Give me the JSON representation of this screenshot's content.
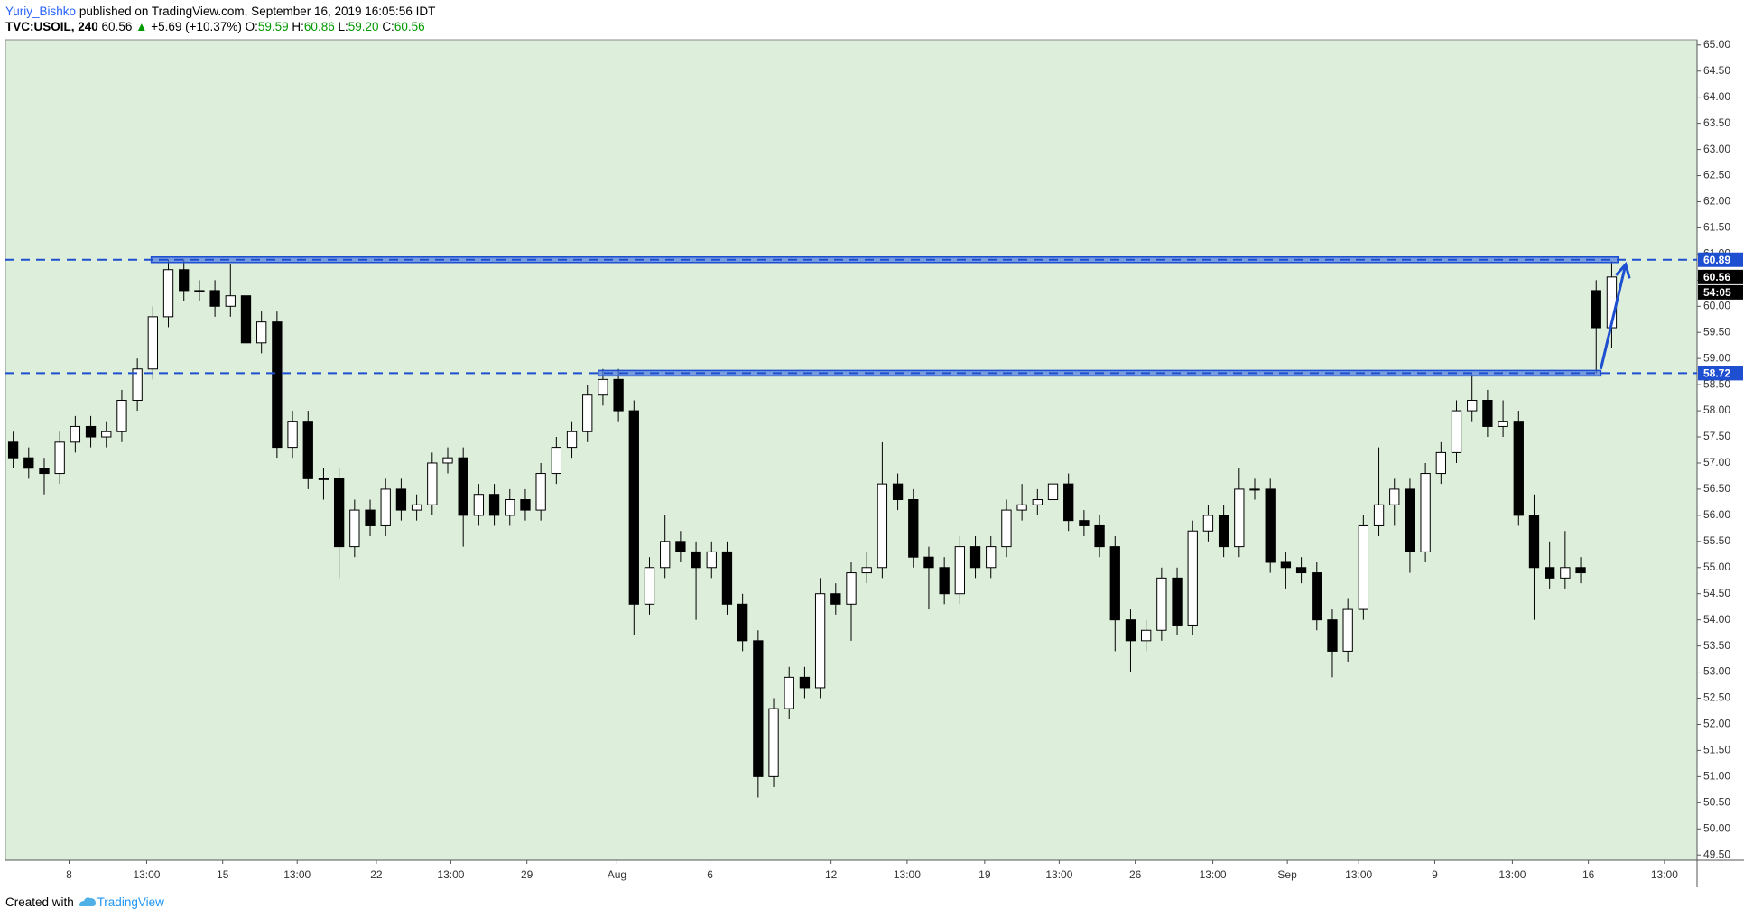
{
  "header": {
    "author": "Yuriy_Bishko",
    "published": "published on TradingView.com, September 16, 2019 16:05:56 IDT",
    "symbol": "TVC:USOIL, 240",
    "price": "60.56",
    "arrow": "▲",
    "change": "+5.69 (+10.37%)",
    "o_label": "O:",
    "o": "59.59",
    "h_label": "H:",
    "h": "60.86",
    "l_label": "L:",
    "l": "59.20",
    "c_label": "C:",
    "c": "60.56"
  },
  "footer": {
    "created": "Created with",
    "brand": "TradingView"
  },
  "chart_data": {
    "type": "candlestick",
    "up_color": "#ffffff",
    "down_color": "#000000",
    "background": "#ddefdb",
    "xlim": [
      -0.5,
      108.5
    ],
    "ylim": [
      49.4,
      65.1
    ],
    "xticks": [
      {
        "value": 3.6,
        "label": "8"
      },
      {
        "value": 8.6,
        "label": "13:00"
      },
      {
        "value": 13.5,
        "label": "15"
      },
      {
        "value": 18.3,
        "label": "13:00"
      },
      {
        "value": 23.4,
        "label": "22"
      },
      {
        "value": 28.2,
        "label": "13:00"
      },
      {
        "value": 33.1,
        "label": "29"
      },
      {
        "value": 38.9,
        "label": "Aug"
      },
      {
        "value": 44.9,
        "label": "6"
      },
      {
        "value": 52.7,
        "label": "12"
      },
      {
        "value": 57.6,
        "label": "13:00"
      },
      {
        "value": 62.6,
        "label": "19"
      },
      {
        "value": 67.4,
        "label": "13:00"
      },
      {
        "value": 72.3,
        "label": "26"
      },
      {
        "value": 77.3,
        "label": "13:00"
      },
      {
        "value": 82.1,
        "label": "Sep"
      },
      {
        "value": 86.7,
        "label": "13:00"
      },
      {
        "value": 91.6,
        "label": "9"
      },
      {
        "value": 96.6,
        "label": "13:00"
      },
      {
        "value": 101.5,
        "label": "16"
      },
      {
        "value": 106.4,
        "label": "13:00"
      }
    ],
    "yticks": [
      {
        "value": 49.5,
        "label": "49.50"
      },
      {
        "value": 50,
        "label": "50.00"
      },
      {
        "value": 50.5,
        "label": "50.50"
      },
      {
        "value": 51,
        "label": "51.00"
      },
      {
        "value": 51.5,
        "label": "51.50"
      },
      {
        "value": 52,
        "label": "52.00"
      },
      {
        "value": 52.5,
        "label": "52.50"
      },
      {
        "value": 53,
        "label": "53.00"
      },
      {
        "value": 53.5,
        "label": "53.50"
      },
      {
        "value": 54,
        "label": "54.00"
      },
      {
        "value": 54.5,
        "label": "54.50"
      },
      {
        "value": 55,
        "label": "55.00"
      },
      {
        "value": 55.5,
        "label": "55.50"
      },
      {
        "value": 56,
        "label": "56.00"
      },
      {
        "value": 56.5,
        "label": "56.50"
      },
      {
        "value": 57,
        "label": "57.00"
      },
      {
        "value": 57.5,
        "label": "57.50"
      },
      {
        "value": 58,
        "label": "58.00"
      },
      {
        "value": 58.5,
        "label": "58.50"
      },
      {
        "value": 59,
        "label": "59.00"
      },
      {
        "value": 59.5,
        "label": "59.50"
      },
      {
        "value": 60,
        "label": "60.00"
      },
      {
        "value": 60.5,
        "label": "60.50"
      },
      {
        "value": 61,
        "label": "61.00"
      },
      {
        "value": 61.5,
        "label": "61.50"
      },
      {
        "value": 62,
        "label": "62.00"
      },
      {
        "value": 62.5,
        "label": "62.50"
      },
      {
        "value": 63,
        "label": "63.00"
      },
      {
        "value": 63.5,
        "label": "63.50"
      },
      {
        "value": 64,
        "label": "64.00"
      },
      {
        "value": 64.5,
        "label": "64.50"
      },
      {
        "value": 65,
        "label": "65.00"
      }
    ],
    "ohlc": [
      [
        57.4,
        57.6,
        56.9,
        57.1
      ],
      [
        57.1,
        57.3,
        56.7,
        56.9
      ],
      [
        56.9,
        57.1,
        56.4,
        56.8
      ],
      [
        56.8,
        57.6,
        56.6,
        57.4
      ],
      [
        57.4,
        57.9,
        57.2,
        57.7
      ],
      [
        57.7,
        57.9,
        57.3,
        57.5
      ],
      [
        57.5,
        57.8,
        57.3,
        57.6
      ],
      [
        57.6,
        58.4,
        57.4,
        58.2
      ],
      [
        58.2,
        59.0,
        58.0,
        58.8
      ],
      [
        58.8,
        60.0,
        58.6,
        59.8
      ],
      [
        59.8,
        60.9,
        59.6,
        60.7
      ],
      [
        60.7,
        60.9,
        60.1,
        60.3
      ],
      [
        60.3,
        60.5,
        60.1,
        60.3
      ],
      [
        60.3,
        60.5,
        59.8,
        60.0
      ],
      [
        60.0,
        60.8,
        59.8,
        60.2
      ],
      [
        60.2,
        60.4,
        59.1,
        59.3
      ],
      [
        59.3,
        59.9,
        59.1,
        59.7
      ],
      [
        59.7,
        59.9,
        57.1,
        57.3
      ],
      [
        57.3,
        58.0,
        57.1,
        57.8
      ],
      [
        57.8,
        58.0,
        56.5,
        56.7
      ],
      [
        56.7,
        56.9,
        56.3,
        56.7
      ],
      [
        56.7,
        56.9,
        54.8,
        55.4
      ],
      [
        55.4,
        56.3,
        55.2,
        56.1
      ],
      [
        56.1,
        56.3,
        55.6,
        55.8
      ],
      [
        55.8,
        56.7,
        55.6,
        56.5
      ],
      [
        56.5,
        56.7,
        55.9,
        56.1
      ],
      [
        56.1,
        56.4,
        55.9,
        56.2
      ],
      [
        56.2,
        57.2,
        56.0,
        57.0
      ],
      [
        57.0,
        57.3,
        56.8,
        57.1
      ],
      [
        57.1,
        57.3,
        55.4,
        56.0
      ],
      [
        56.0,
        56.6,
        55.8,
        56.4
      ],
      [
        56.4,
        56.6,
        55.8,
        56.0
      ],
      [
        56.0,
        56.5,
        55.8,
        56.3
      ],
      [
        56.3,
        56.5,
        55.9,
        56.1
      ],
      [
        56.1,
        57.0,
        55.9,
        56.8
      ],
      [
        56.8,
        57.5,
        56.6,
        57.3
      ],
      [
        57.3,
        57.8,
        57.1,
        57.6
      ],
      [
        57.6,
        58.5,
        57.4,
        58.3
      ],
      [
        58.3,
        58.8,
        58.1,
        58.6
      ],
      [
        58.6,
        58.8,
        57.8,
        58.0
      ],
      [
        58.0,
        58.2,
        53.7,
        54.3
      ],
      [
        54.3,
        55.2,
        54.1,
        55.0
      ],
      [
        55.0,
        56.0,
        54.8,
        55.5
      ],
      [
        55.5,
        55.7,
        55.1,
        55.3
      ],
      [
        55.3,
        55.5,
        54.0,
        55.0
      ],
      [
        55.0,
        55.5,
        54.8,
        55.3
      ],
      [
        55.3,
        55.5,
        54.1,
        54.3
      ],
      [
        54.3,
        54.5,
        53.4,
        53.6
      ],
      [
        53.6,
        53.8,
        50.6,
        51.0
      ],
      [
        51.0,
        52.5,
        50.8,
        52.3
      ],
      [
        52.3,
        53.1,
        52.1,
        52.9
      ],
      [
        52.9,
        53.1,
        52.5,
        52.7
      ],
      [
        52.7,
        54.8,
        52.5,
        54.5
      ],
      [
        54.5,
        54.7,
        54.1,
        54.3
      ],
      [
        54.3,
        55.1,
        53.6,
        54.9
      ],
      [
        54.9,
        55.3,
        54.7,
        55.0
      ],
      [
        55.0,
        57.4,
        54.8,
        56.6
      ],
      [
        56.6,
        56.8,
        56.1,
        56.3
      ],
      [
        56.3,
        56.5,
        55.0,
        55.2
      ],
      [
        55.2,
        55.4,
        54.2,
        55.0
      ],
      [
        55.0,
        55.2,
        54.3,
        54.5
      ],
      [
        54.5,
        55.6,
        54.3,
        55.4
      ],
      [
        55.4,
        55.6,
        54.8,
        55.0
      ],
      [
        55.0,
        55.6,
        54.8,
        55.4
      ],
      [
        55.4,
        56.3,
        55.2,
        56.1
      ],
      [
        56.1,
        56.6,
        55.9,
        56.2
      ],
      [
        56.2,
        56.5,
        56.0,
        56.3
      ],
      [
        56.3,
        57.1,
        56.1,
        56.6
      ],
      [
        56.6,
        56.8,
        55.7,
        55.9
      ],
      [
        55.9,
        56.1,
        55.6,
        55.8
      ],
      [
        55.8,
        56.0,
        55.2,
        55.4
      ],
      [
        55.4,
        55.6,
        53.4,
        54.0
      ],
      [
        54.0,
        54.2,
        53.0,
        53.6
      ],
      [
        53.6,
        54.0,
        53.4,
        53.8
      ],
      [
        53.8,
        55.0,
        53.6,
        54.8
      ],
      [
        54.8,
        55.0,
        53.7,
        53.9
      ],
      [
        53.9,
        55.9,
        53.7,
        55.7
      ],
      [
        55.7,
        56.2,
        55.5,
        56.0
      ],
      [
        56.0,
        56.2,
        55.2,
        55.4
      ],
      [
        55.4,
        56.9,
        55.2,
        56.5
      ],
      [
        56.5,
        56.7,
        56.3,
        56.5
      ],
      [
        56.5,
        56.7,
        54.9,
        55.1
      ],
      [
        55.1,
        55.3,
        54.6,
        55.0
      ],
      [
        55.0,
        55.2,
        54.7,
        54.9
      ],
      [
        54.9,
        55.1,
        53.8,
        54.0
      ],
      [
        54.0,
        54.2,
        52.9,
        53.4
      ],
      [
        53.4,
        54.4,
        53.2,
        54.2
      ],
      [
        54.2,
        56.0,
        54.0,
        55.8
      ],
      [
        55.8,
        57.3,
        55.6,
        56.2
      ],
      [
        56.2,
        56.7,
        55.8,
        56.5
      ],
      [
        56.5,
        56.7,
        54.9,
        55.3
      ],
      [
        55.3,
        57.0,
        55.1,
        56.8
      ],
      [
        56.8,
        57.4,
        56.6,
        57.2
      ],
      [
        57.2,
        58.2,
        57.0,
        58.0
      ],
      [
        58.0,
        58.7,
        57.8,
        58.2
      ],
      [
        58.2,
        58.4,
        57.5,
        57.7
      ],
      [
        57.7,
        58.2,
        57.5,
        57.8
      ],
      [
        57.8,
        58.0,
        55.8,
        56.0
      ],
      [
        56.0,
        56.4,
        54.0,
        55.0
      ],
      [
        55.0,
        55.5,
        54.6,
        54.8
      ],
      [
        54.8,
        55.7,
        54.6,
        55.0
      ],
      [
        55.0,
        55.2,
        54.7,
        54.9
      ],
      [
        60.3,
        60.5,
        58.72,
        59.59
      ],
      [
        59.59,
        60.86,
        59.2,
        60.56
      ]
    ],
    "levels": [
      {
        "value": 60.89,
        "label": "60.89",
        "zone": [
          8.9,
          103.4
        ]
      },
      {
        "value": 58.72,
        "label": "58.72",
        "zone": [
          37.7,
          102.3
        ]
      }
    ],
    "level_color": "#1e4fd0",
    "arrow": {
      "x": [
        102.3,
        103.9
      ],
      "y": [
        58.8,
        60.8
      ]
    },
    "last_price": {
      "value": 60.56,
      "label": "60.56"
    },
    "countdown": "54:05"
  }
}
